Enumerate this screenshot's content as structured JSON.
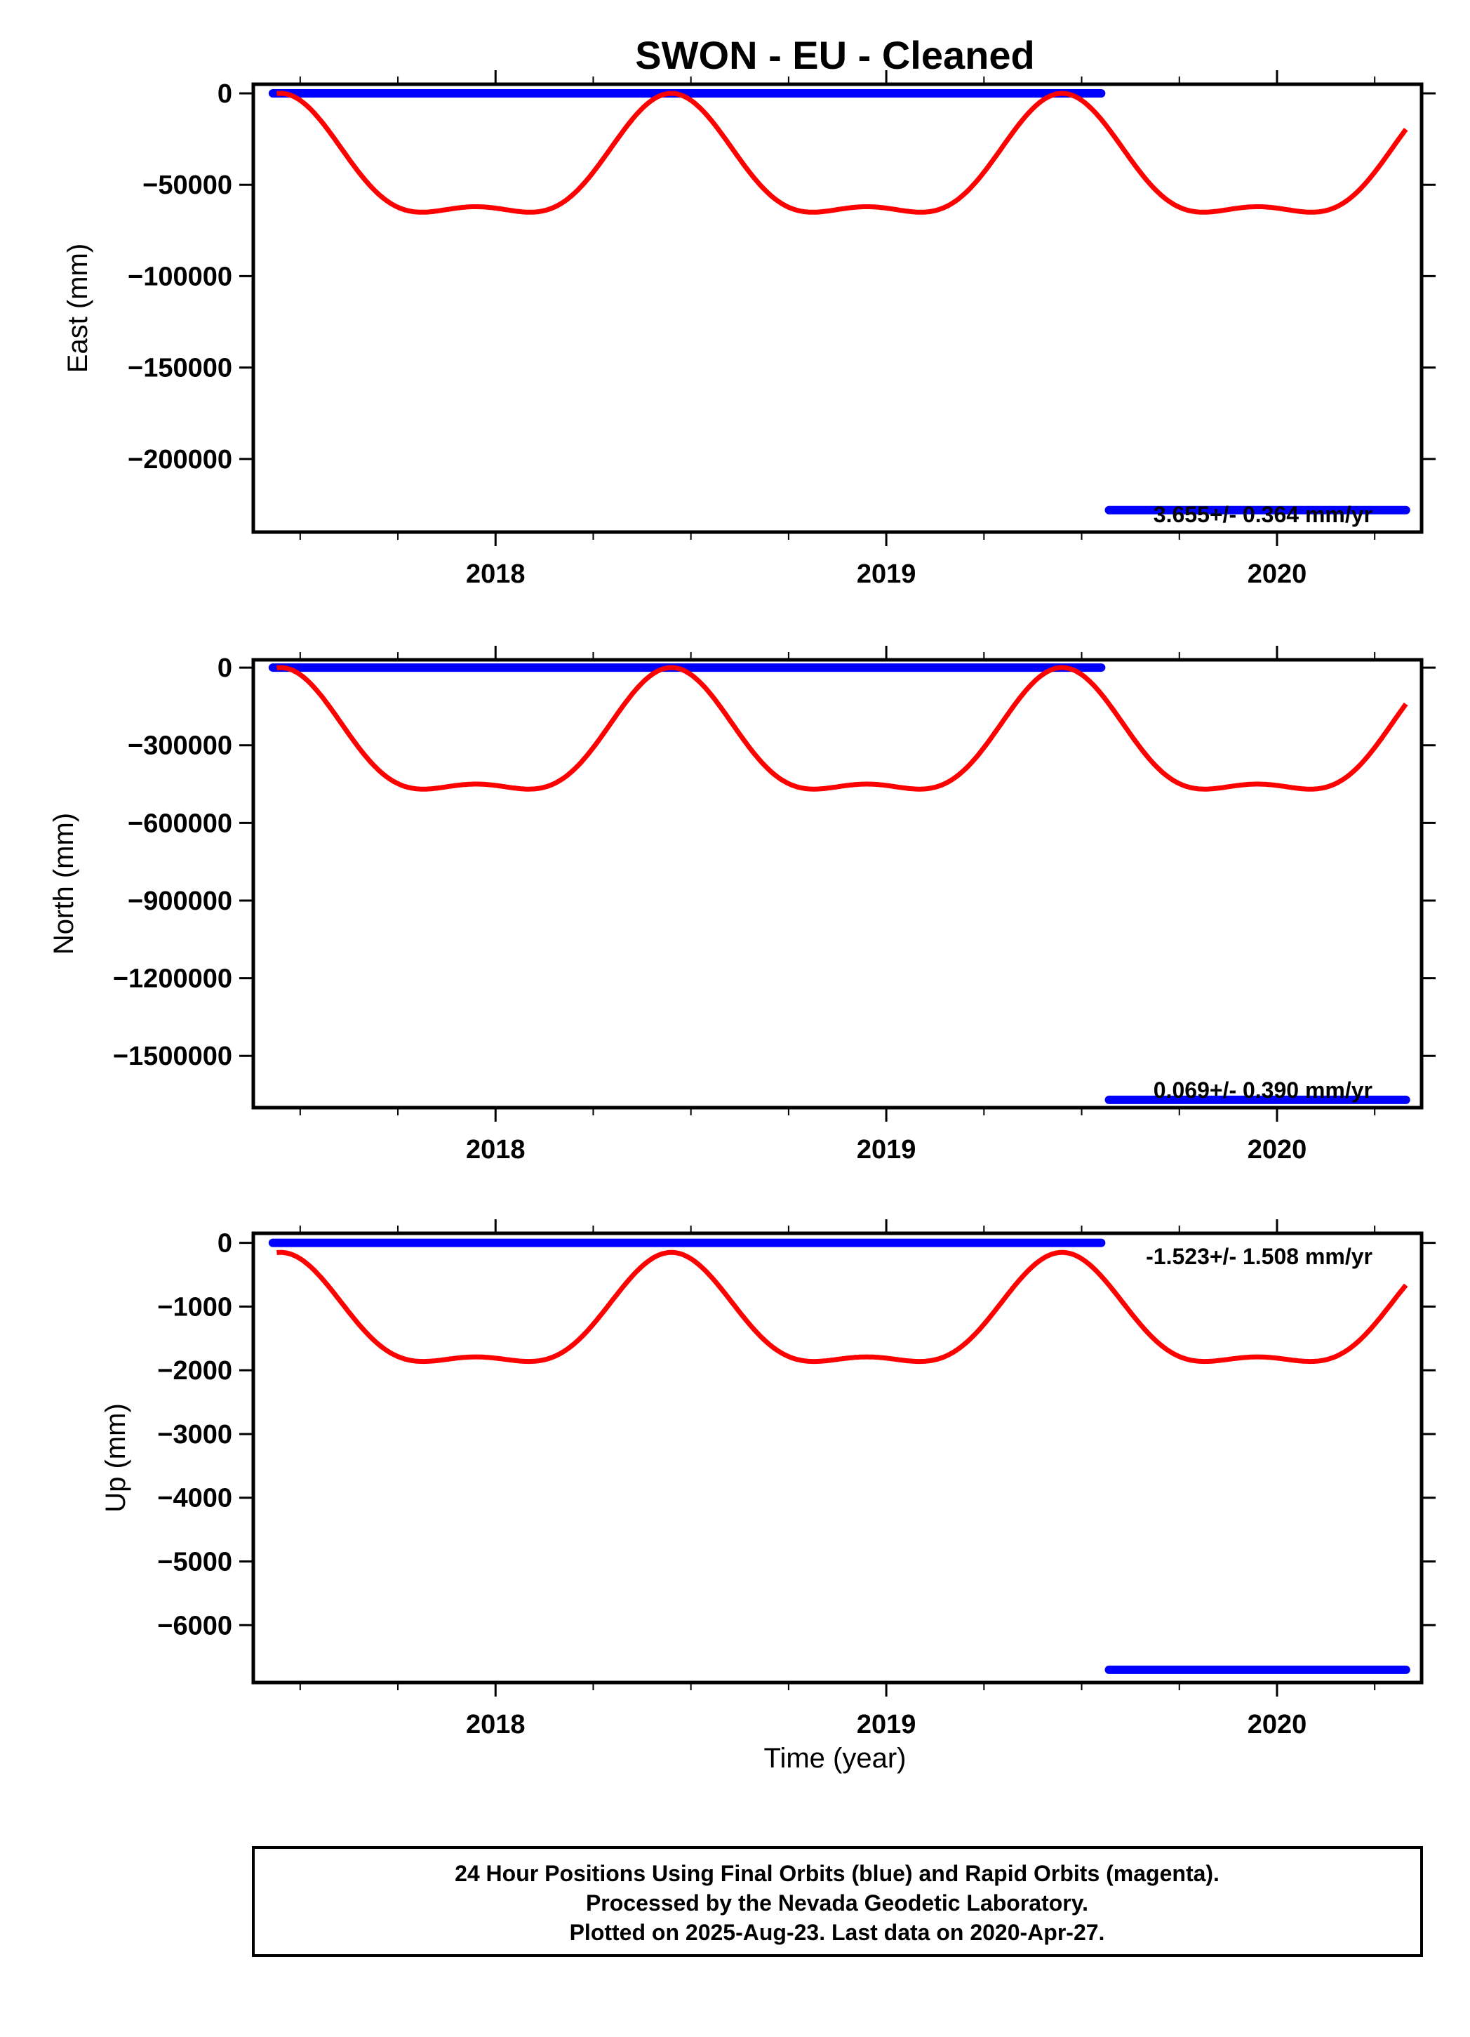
{
  "title": "SWON  - EU - Cleaned",
  "xlabel": "Time (year)",
  "footer": {
    "lines": [
      "24 Hour Positions Using Final Orbits (blue) and Rapid Orbits (magenta).",
      "Processed by the Nevada Geodetic Laboratory.",
      "Plotted on 2025-Aug-23. Last data on 2020-Apr-27."
    ]
  },
  "colors": {
    "final": "#0000ff",
    "fit": "#ff0000",
    "axis": "#000000"
  },
  "chart_data": [
    {
      "type": "line",
      "ylabel": "East (mm)",
      "xlim": [
        2017.38,
        2020.37
      ],
      "ylim": [
        -240000,
        5000
      ],
      "x_ticks": [
        2018,
        2019,
        2020
      ],
      "x_minor": [
        2017.5,
        2017.75,
        2018.25,
        2018.5,
        2018.75,
        2019.25,
        2019.5,
        2019.75,
        2020.25
      ],
      "y_ticks": [
        0,
        -50000,
        -100000,
        -150000,
        -200000
      ],
      "rate_label": "3.655+/- 0.364 mm/yr",
      "rate_position": "bottom-right",
      "series": [
        {
          "x_range": [
            2017.43,
            2019.55
          ],
          "values": [
            0
          ],
          "style": "dots"
        },
        {
          "x_range": [
            2019.57,
            2020.33
          ],
          "values": [
            -228000
          ],
          "style": "dots"
        },
        {
          "style": "fit-line",
          "offset": -43000,
          "annual_amp": 31000,
          "annual_phase": 0,
          "semi_amp": 12000,
          "semi_phase": 0,
          "x_range": [
            2017.44,
            2020.33
          ]
        }
      ]
    },
    {
      "type": "line",
      "ylabel": "North (mm)",
      "xlim": [
        2017.38,
        2020.37
      ],
      "ylim": [
        -1700000,
        30000
      ],
      "x_ticks": [
        2018,
        2019,
        2020
      ],
      "x_minor": [
        2017.5,
        2017.75,
        2018.25,
        2018.5,
        2018.75,
        2019.25,
        2019.5,
        2019.75,
        2020.25
      ],
      "y_ticks": [
        0,
        -300000,
        -600000,
        -900000,
        -1200000,
        -1500000
      ],
      "rate_label": "0.069+/- 0.390 mm/yr",
      "rate_position": "bottom-right",
      "series": [
        {
          "x_range": [
            2017.43,
            2019.55
          ],
          "values": [
            0
          ],
          "style": "dots"
        },
        {
          "x_range": [
            2019.57,
            2020.33
          ],
          "values": [
            -1670000
          ],
          "style": "dots"
        },
        {
          "style": "fit-line",
          "offset": -310000,
          "annual_amp": 225000,
          "annual_phase": 0,
          "semi_amp": 85000,
          "semi_phase": 0,
          "x_range": [
            2017.44,
            2020.33
          ]
        }
      ]
    },
    {
      "type": "line",
      "ylabel": "Up (mm)",
      "xlim": [
        2017.38,
        2020.37
      ],
      "ylim": [
        -6900,
        150
      ],
      "x_ticks": [
        2018,
        2019,
        2020
      ],
      "x_minor": [
        2017.5,
        2017.75,
        2018.25,
        2018.5,
        2018.75,
        2019.25,
        2019.5,
        2019.75,
        2020.25
      ],
      "y_ticks": [
        0,
        -1000,
        -2000,
        -3000,
        -4000,
        -5000,
        -6000
      ],
      "rate_label": "-1.523+/- 1.508 mm/yr",
      "rate_position": "top-right",
      "series": [
        {
          "x_range": [
            2017.43,
            2019.55
          ],
          "values": [
            0
          ],
          "style": "dots"
        },
        {
          "x_range": [
            2019.57,
            2020.33
          ],
          "values": [
            -6700
          ],
          "style": "dots"
        },
        {
          "style": "fit-line",
          "offset": -1280,
          "annual_amp": 820,
          "annual_phase": 0,
          "semi_amp": 310,
          "semi_phase": 0,
          "x_range": [
            2017.44,
            2020.33
          ]
        }
      ]
    }
  ]
}
